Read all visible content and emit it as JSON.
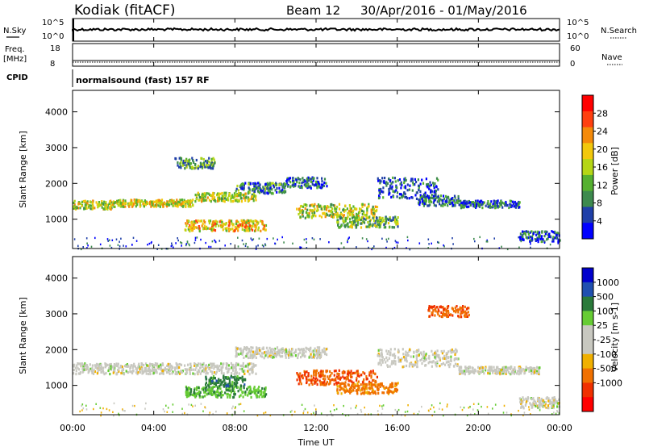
{
  "header": {
    "station": "Kodiak (fitACF)",
    "beam": "Beam 12",
    "date_range": "30/Apr/2016 - 01/May/2016"
  },
  "top_panels": {
    "nsky_label": "N.Sky",
    "nsky_ticks": [
      "10^5",
      "10^0"
    ],
    "nsearch_label": "N.Search",
    "nsearch_ticks": [
      "10^5",
      "10^0"
    ],
    "freq_label_1": "Freq.",
    "freq_label_2": "[MHz]",
    "freq_ticks": [
      "18",
      "8"
    ],
    "nave_label": "Nave",
    "nave_ticks": [
      "60",
      "0"
    ],
    "cpid_label": "CPID",
    "cpid_text": "normalsound (fast) 157 RF"
  },
  "x_axis": {
    "label": "Time UT",
    "ticks": [
      "00:00",
      "04:00",
      "08:00",
      "12:00",
      "16:00",
      "20:00",
      "00:00"
    ]
  },
  "colors": {
    "power": [
      "#0000ff",
      "#1f3fa8",
      "#3d8a4e",
      "#55b030",
      "#b5d616",
      "#f2c80c",
      "#f48a0a",
      "#ff4010",
      "#ff0000"
    ],
    "velocity": [
      "#0000cc",
      "#2050b0",
      "#2a7a3a",
      "#66cc33",
      "#c8c8c0",
      "#c8c8c0",
      "#f0b000",
      "#f07000",
      "#f03000",
      "#ff0000"
    ]
  },
  "chart_data": [
    {
      "type": "heatmap",
      "title": "",
      "xlabel": "Time UT",
      "ylabel": "Slant Range [km]",
      "xlim": [
        0,
        24
      ],
      "ylim": [
        180,
        4600
      ],
      "y_ticks": [
        "1000",
        "2000",
        "3000",
        "4000"
      ],
      "colorbar": {
        "label": "Power [dB]",
        "ticks": [
          "4",
          "8",
          "12",
          "16",
          "20",
          "24",
          "28"
        ],
        "range": [
          0,
          32
        ]
      },
      "regions": [
        {
          "x": [
            0,
            2
          ],
          "y_center": 1430,
          "y_halfwidth": 120,
          "value": 18
        },
        {
          "x": [
            2,
            6
          ],
          "y_center": 1480,
          "y_halfwidth": 100,
          "value": 20
        },
        {
          "x": [
            6,
            9
          ],
          "y_center": 1650,
          "y_halfwidth": 120,
          "value": 18
        },
        {
          "x": [
            5.5,
            9.5
          ],
          "y_center": 850,
          "y_halfwidth": 150,
          "value": 22
        },
        {
          "x": [
            8,
            10.5
          ],
          "y_center": 1900,
          "y_halfwidth": 150,
          "value": 10
        },
        {
          "x": [
            10.5,
            12.5
          ],
          "y_center": 2050,
          "y_halfwidth": 150,
          "value": 8
        },
        {
          "x": [
            11,
            15
          ],
          "y_center": 1250,
          "y_halfwidth": 200,
          "value": 18
        },
        {
          "x": [
            13,
            16
          ],
          "y_center": 950,
          "y_halfwidth": 150,
          "value": 14
        },
        {
          "x": [
            15,
            18
          ],
          "y_center": 1900,
          "y_halfwidth": 300,
          "value": 6
        },
        {
          "x": [
            17,
            19
          ],
          "y_center": 1550,
          "y_halfwidth": 150,
          "value": 8
        },
        {
          "x": [
            19,
            22
          ],
          "y_center": 1450,
          "y_halfwidth": 100,
          "value": 8
        },
        {
          "x": [
            22,
            24
          ],
          "y_center": 550,
          "y_halfwidth": 150,
          "value": 6
        },
        {
          "x": [
            5,
            7
          ],
          "y_center": 2600,
          "y_halfwidth": 150,
          "value": 12
        }
      ]
    },
    {
      "type": "heatmap",
      "title": "",
      "xlabel": "Time UT",
      "ylabel": "Slant Range [km]",
      "xlim": [
        0,
        24
      ],
      "ylim": [
        180,
        4600
      ],
      "y_ticks": [
        "1000",
        "2000",
        "3000",
        "4000"
      ],
      "colorbar": {
        "label": "Velocity [m s-1]",
        "ticks": [
          "1000",
          "500",
          "100",
          "25",
          "-25",
          "-100",
          "-500",
          "-1000"
        ]
      },
      "regions": [
        {
          "x": [
            0,
            9
          ],
          "y_center": 1500,
          "y_halfwidth": 150,
          "value": 0
        },
        {
          "x": [
            5.5,
            9.5
          ],
          "y_center": 850,
          "y_halfwidth": 150,
          "value": 80
        },
        {
          "x": [
            6.5,
            8.5
          ],
          "y_center": 1150,
          "y_halfwidth": 150,
          "value": 200
        },
        {
          "x": [
            8,
            12.5
          ],
          "y_center": 1950,
          "y_halfwidth": 150,
          "value": 0
        },
        {
          "x": [
            11,
            15
          ],
          "y_center": 1250,
          "y_halfwidth": 200,
          "value": -300
        },
        {
          "x": [
            13,
            16
          ],
          "y_center": 950,
          "y_halfwidth": 150,
          "value": -150
        },
        {
          "x": [
            15,
            19
          ],
          "y_center": 1800,
          "y_halfwidth": 250,
          "value": 0
        },
        {
          "x": [
            19,
            23
          ],
          "y_center": 1450,
          "y_halfwidth": 100,
          "value": 0
        },
        {
          "x": [
            22,
            24
          ],
          "y_center": 550,
          "y_halfwidth": 150,
          "value": 0
        },
        {
          "x": [
            17.5,
            19.5
          ],
          "y_center": 3100,
          "y_halfwidth": 150,
          "value": -300
        }
      ]
    }
  ]
}
